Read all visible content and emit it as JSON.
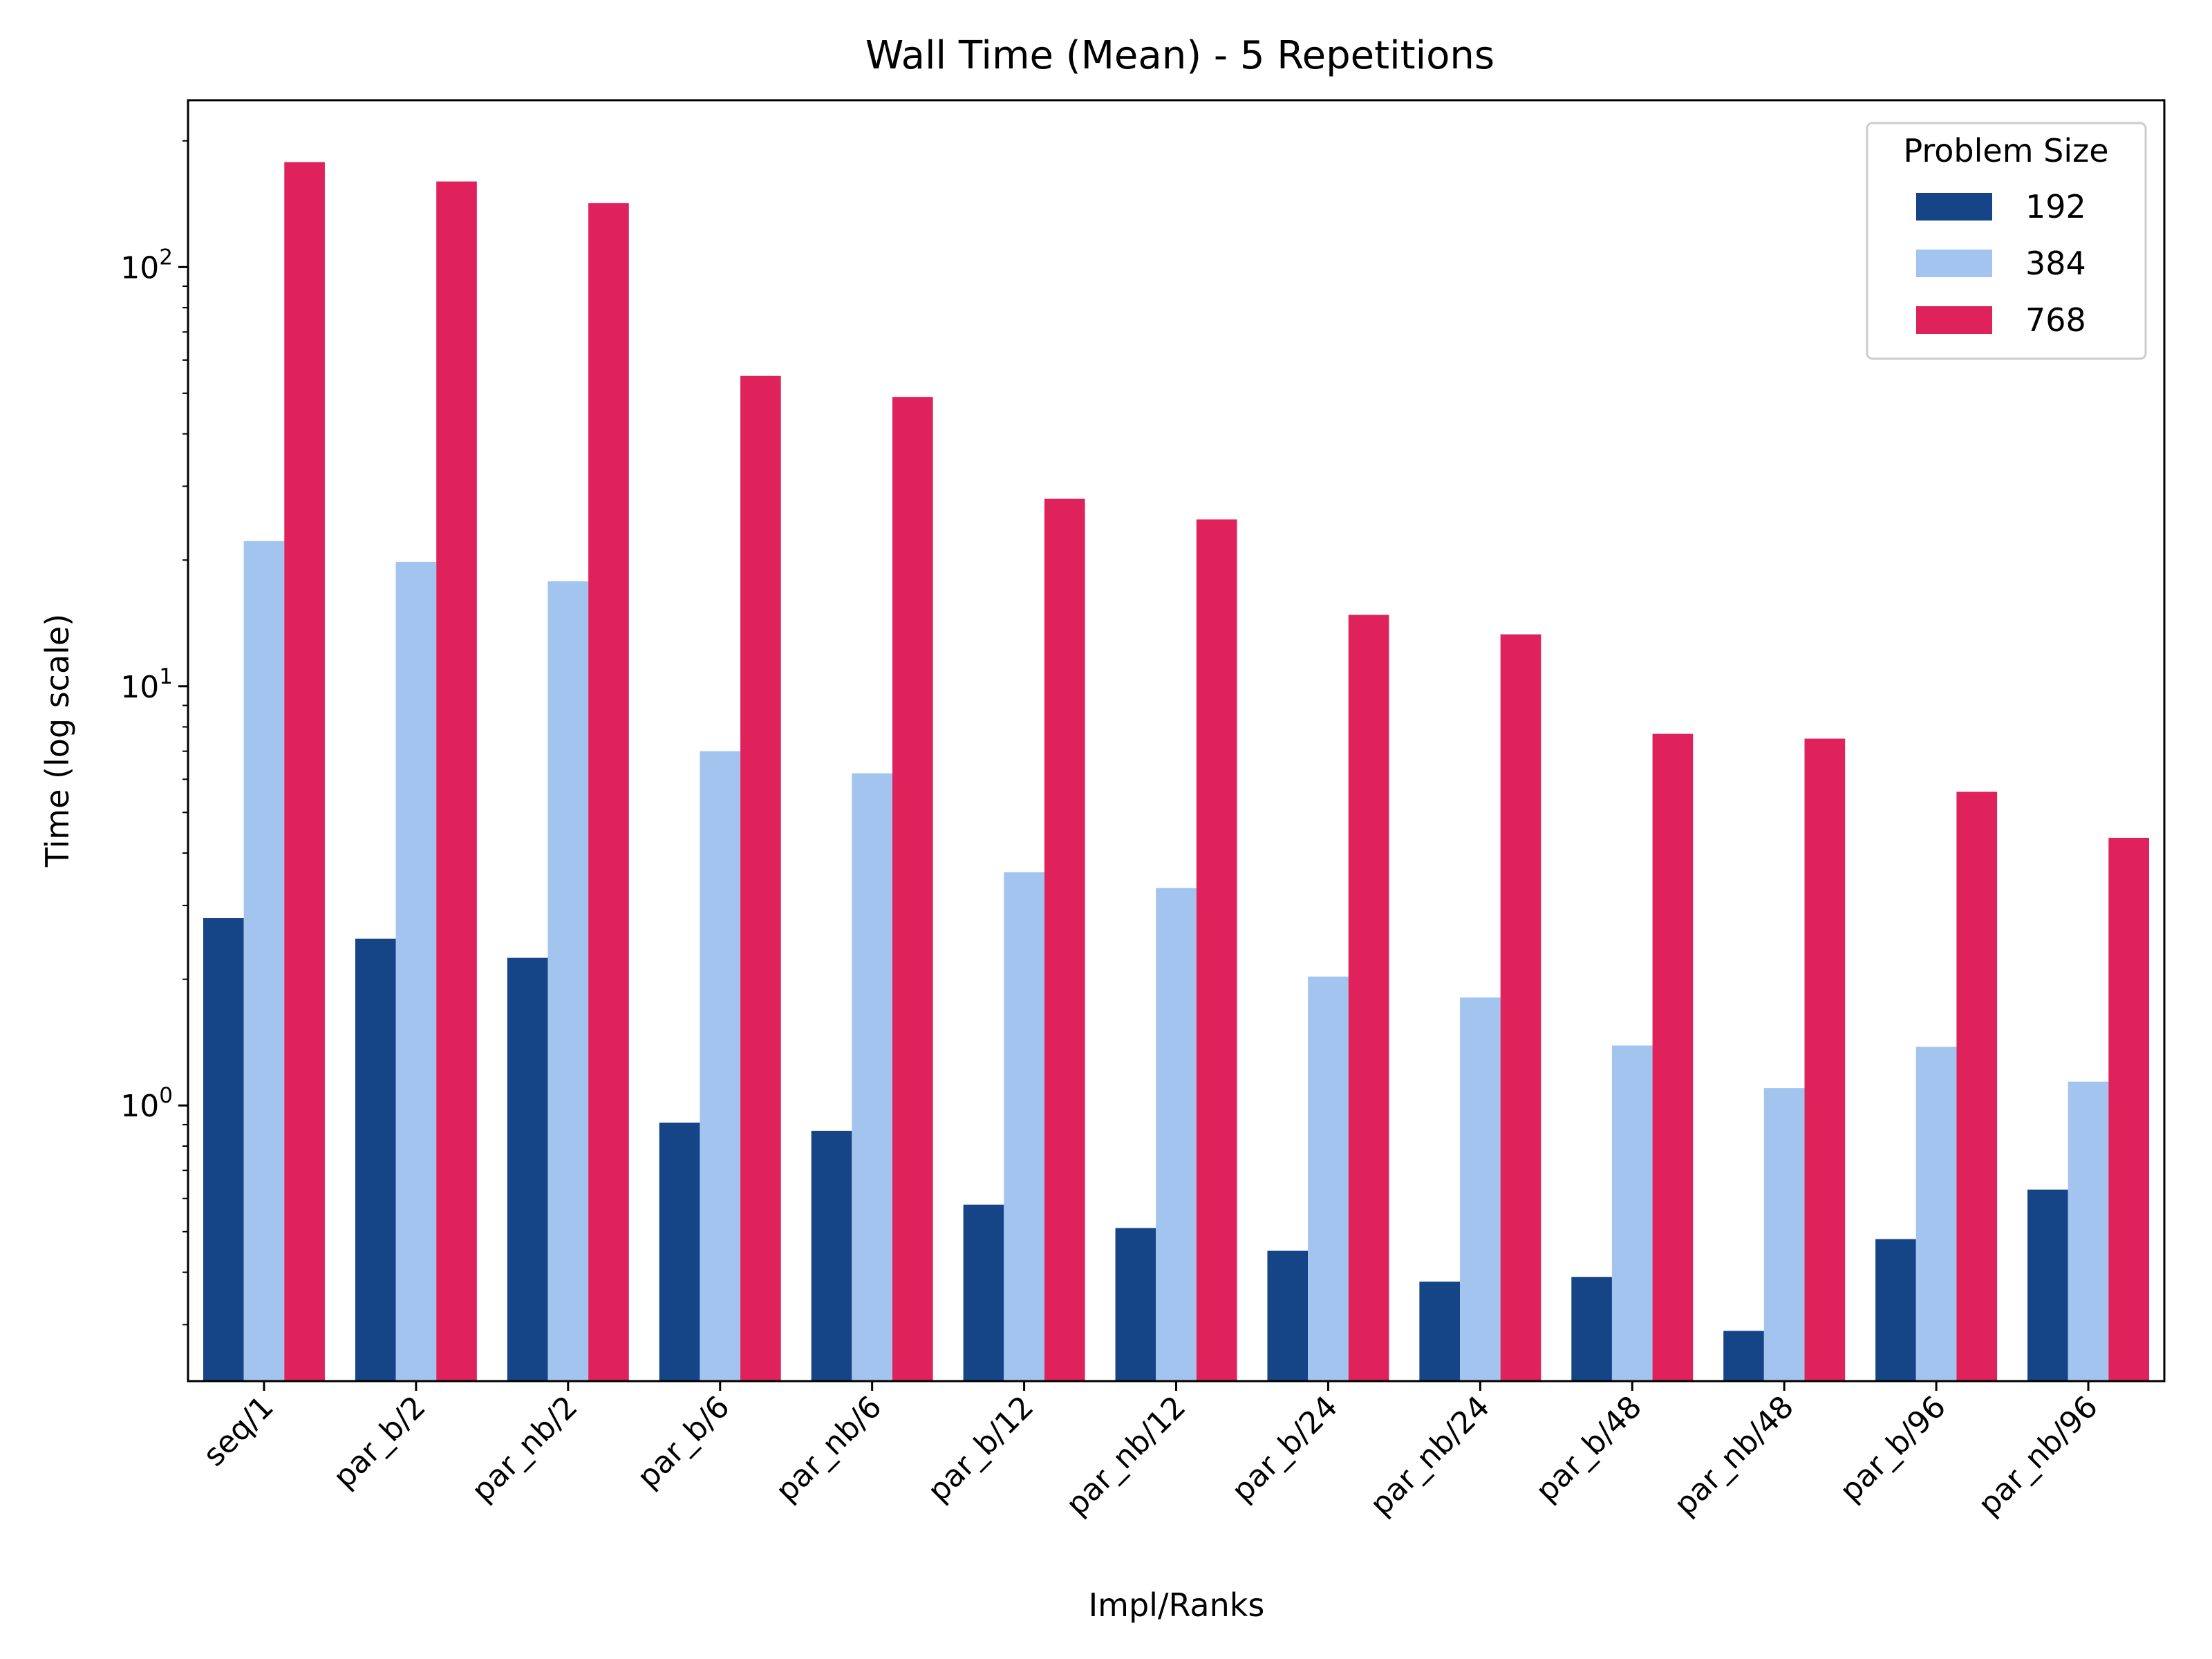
{
  "chart_data": {
    "type": "bar",
    "title": "Wall Time (Mean) - 5 Repetitions",
    "xlabel": "Impl/Ranks",
    "ylabel": "Time (log scale)",
    "yscale": "log",
    "ylim": [
      0.22,
      250
    ],
    "yticks": [
      {
        "value": 1,
        "label": "10",
        "exp": "0"
      },
      {
        "value": 10,
        "label": "10",
        "exp": "1"
      },
      {
        "value": 100,
        "label": "10",
        "exp": "2"
      }
    ],
    "grid": false,
    "legend": {
      "title": "Problem Size",
      "placement": "top-right"
    },
    "categories": [
      "seq/1",
      "par_b/2",
      "par_nb/2",
      "par_b/6",
      "par_nb/6",
      "par_b/12",
      "par_nb/12",
      "par_b/24",
      "par_nb/24",
      "par_b/48",
      "par_nb/48",
      "par_b/96",
      "par_nb/96"
    ],
    "series": [
      {
        "name": "192",
        "color": "#154487",
        "values": [
          2.8,
          2.5,
          2.25,
          0.91,
          0.87,
          0.58,
          0.51,
          0.45,
          0.38,
          0.39,
          0.29,
          0.48,
          0.63
        ]
      },
      {
        "name": "384",
        "color": "#a2c4ef",
        "values": [
          22.2,
          19.8,
          17.8,
          7.0,
          6.2,
          3.6,
          3.3,
          2.03,
          1.81,
          1.39,
          1.1,
          1.38,
          1.14
        ]
      },
      {
        "name": "768",
        "color": "#df225c",
        "values": [
          178,
          160,
          142,
          55,
          49,
          28,
          25,
          14.8,
          13.3,
          7.7,
          7.5,
          5.6,
          4.35
        ]
      }
    ]
  }
}
